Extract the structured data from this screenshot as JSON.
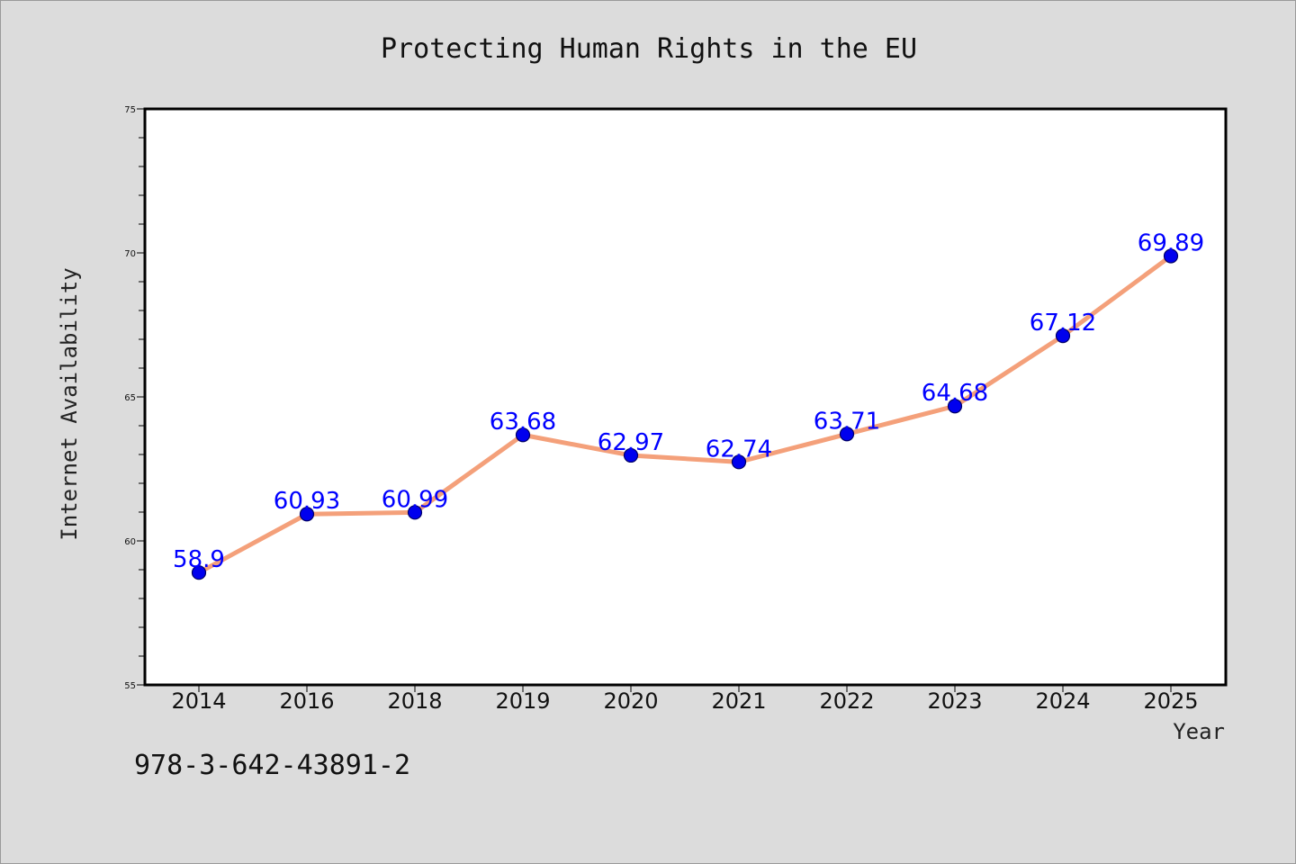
{
  "footer_code": "978-3-642-43891-2",
  "colors": {
    "background": "#dcdcdc",
    "plot_background": "#ffffff",
    "line": "#f4a07a",
    "marker": "#0000ee",
    "marker_edge": "#000066",
    "data_label": "#0000ff"
  },
  "chart_data": {
    "type": "line",
    "title": "Protecting Human Rights in the EU",
    "xlabel": "Year",
    "ylabel": "Internet Availability",
    "categories": [
      "2014",
      "2016",
      "2018",
      "2019",
      "2020",
      "2021",
      "2022",
      "2023",
      "2024",
      "2025"
    ],
    "series": [
      {
        "values": [
          58.9,
          60.93,
          60.99,
          63.68,
          62.97,
          62.74,
          63.71,
          64.68,
          67.12,
          69.89
        ],
        "labels": [
          "58.9",
          "60.93",
          "60.99",
          "63.68",
          "62.97",
          "62.74",
          "63.71",
          "64.68",
          "67.12",
          "69.89"
        ]
      }
    ],
    "ylim": [
      55,
      75
    ],
    "yticks": [
      "55",
      "60",
      "65",
      "70",
      "75"
    ],
    "y_minor_step": 1,
    "grid": false,
    "legend": "none",
    "markers": "circle"
  }
}
